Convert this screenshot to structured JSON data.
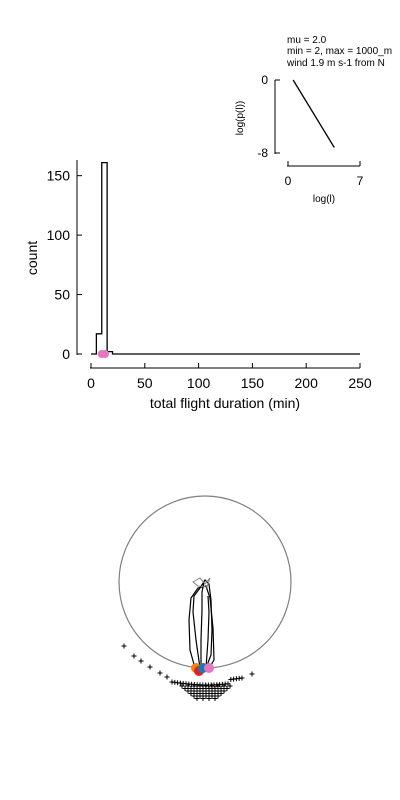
{
  "chart_data": [
    {
      "type": "bar",
      "xlabel": "total flight duration (min)",
      "ylabel": "count",
      "xlim": [
        0,
        250
      ],
      "ylim": [
        0,
        180
      ],
      "xticks": [
        0,
        50,
        100,
        150,
        200,
        250
      ],
      "yticks": [
        0,
        50,
        100,
        150
      ],
      "bins": [
        {
          "x0": 0,
          "x1": 5,
          "count": 0
        },
        {
          "x0": 5,
          "x1": 10,
          "count": 17
        },
        {
          "x0": 10,
          "x1": 15,
          "count": 161
        },
        {
          "x0": 15,
          "x1": 20,
          "count": 2
        },
        {
          "x0": 20,
          "x1": 250,
          "count": 0
        }
      ],
      "markers": [
        {
          "x": 10,
          "y": 0,
          "color": "#e377c2"
        },
        {
          "x": 13,
          "y": 0,
          "color": "#e377c2"
        }
      ],
      "grid": false
    },
    {
      "type": "line",
      "annotation_lines": [
        "mu = 2.0",
        "min = 2, max = 1000_m",
        "wind 1.9 m s-1 from N"
      ],
      "xlabel": "log(l)",
      "ylabel": "log(p(l))",
      "xlim": [
        0,
        7
      ],
      "ylim": [
        -8,
        0
      ],
      "xticks": [
        0,
        7
      ],
      "yticks": [
        0,
        -8
      ],
      "line": {
        "x": [
          0.5,
          4.5
        ],
        "y": [
          0,
          -7.4
        ]
      },
      "grid": false
    },
    {
      "type": "scatter",
      "description": "flight trajectories within circular arena",
      "circle_color": "#808080",
      "track_color": "#000000",
      "landing_marker": "+",
      "start_markers": [
        {
          "color": "#ff7f0e"
        },
        {
          "color": "#d62728"
        },
        {
          "color": "#1f77b4"
        },
        {
          "color": "#e377c2"
        }
      ],
      "grid": false
    }
  ]
}
